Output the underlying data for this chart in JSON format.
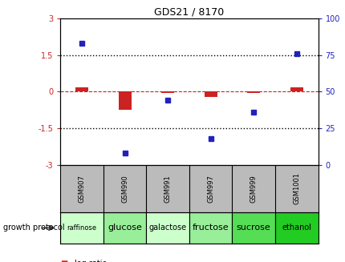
{
  "title": "GDS21 / 8170",
  "samples": [
    "GSM907",
    "GSM990",
    "GSM991",
    "GSM997",
    "GSM999",
    "GSM1001"
  ],
  "protocols": [
    "raffinose",
    "glucose",
    "galactose",
    "fructose",
    "sucrose",
    "ethanol"
  ],
  "log_ratio": [
    0.18,
    -0.75,
    -0.04,
    -0.22,
    -0.04,
    0.18
  ],
  "percentile_rank": [
    83,
    8,
    44,
    18,
    36,
    76
  ],
  "bar_color": "#cc2222",
  "dot_color": "#2222bb",
  "ylim_left": [
    -3,
    3
  ],
  "ylim_right": [
    0,
    100
  ],
  "yticks_left": [
    -3,
    -1.5,
    0,
    1.5,
    3
  ],
  "yticks_right": [
    0,
    25,
    50,
    75,
    100
  ],
  "zero_line_color": "#cc2222",
  "dotted_line_color": "#000000",
  "protocol_colors": [
    "#ccffcc",
    "#99ee99",
    "#ccffcc",
    "#99ee99",
    "#55dd55",
    "#22cc22"
  ],
  "legend_log_ratio_color": "#cc2222",
  "legend_percentile_color": "#2222bb",
  "growth_protocol_label": "growth protocol",
  "gsm_bg_color": "#bbbbbb",
  "background_color": "#ffffff"
}
